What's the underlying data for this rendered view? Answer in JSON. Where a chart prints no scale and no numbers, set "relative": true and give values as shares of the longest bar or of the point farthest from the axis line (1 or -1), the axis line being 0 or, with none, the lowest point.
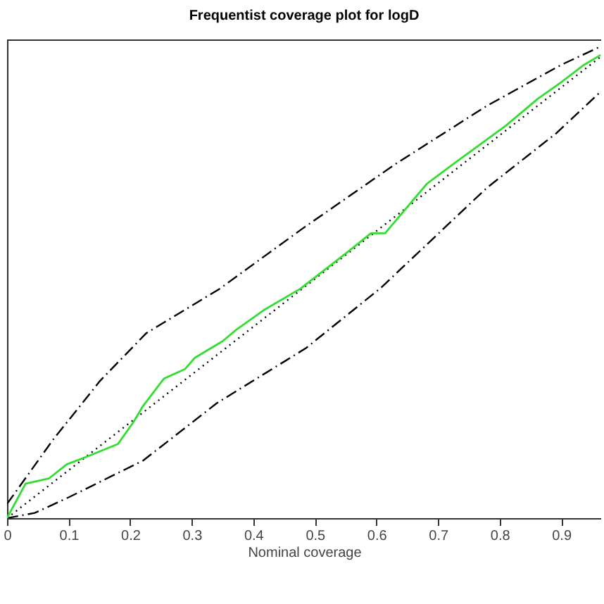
{
  "chart_data": {
    "type": "line",
    "title": "Frequentist coverage plot for logD",
    "xlabel": "Nominal coverage",
    "xlim": [
      0,
      0.965
    ],
    "xticks": [
      {
        "value": 0,
        "label": "0"
      },
      0.1,
      0.2,
      0.3,
      0.4,
      0.5,
      0.6,
      0.7,
      0.8,
      0.9
    ],
    "relative": true,
    "tick_labels": "x",
    "marker": "none",
    "series": [
      {
        "color": "#000000",
        "line_style": "dotted",
        "x": [
          0,
          0.965
        ],
        "values": [
          0,
          0.979
        ]
      },
      {
        "color": "#000000",
        "line_style": "dashdot",
        "x": [
          0,
          0.074,
          0.151,
          0.226,
          0.345,
          0.48,
          0.63,
          0.779,
          0.9,
          0.964
        ],
        "values": [
          0.03,
          0.165,
          0.291,
          0.392,
          0.486,
          0.614,
          0.75,
          0.874,
          0.961,
          1
        ]
      },
      {
        "color": "#000000",
        "line_style": "dashdot",
        "x": [
          0,
          0.045,
          0.1,
          0.221,
          0.341,
          0.485,
          0.607,
          0.779,
          0.892,
          0.964
        ],
        "values": [
          0,
          0.011,
          0.044,
          0.122,
          0.244,
          0.36,
          0.488,
          0.7,
          0.816,
          0.904
        ]
      },
      {
        "color": "#33dd33",
        "line_style": "solid",
        "x": [
          0,
          0.03,
          0.068,
          0.097,
          0.131,
          0.18,
          0.205,
          0.221,
          0.255,
          0.289,
          0.305,
          0.35,
          0.372,
          0.417,
          0.476,
          0.553,
          0.591,
          0.614,
          0.682,
          0.727,
          0.81,
          0.862,
          0.9,
          0.937,
          0.964
        ],
        "values": [
          0,
          0.073,
          0.084,
          0.114,
          0.131,
          0.157,
          0.203,
          0.238,
          0.296,
          0.316,
          0.34,
          0.375,
          0.399,
          0.441,
          0.486,
          0.564,
          0.604,
          0.604,
          0.709,
          0.753,
          0.832,
          0.889,
          0.924,
          0.961,
          0.982
        ]
      }
    ]
  }
}
